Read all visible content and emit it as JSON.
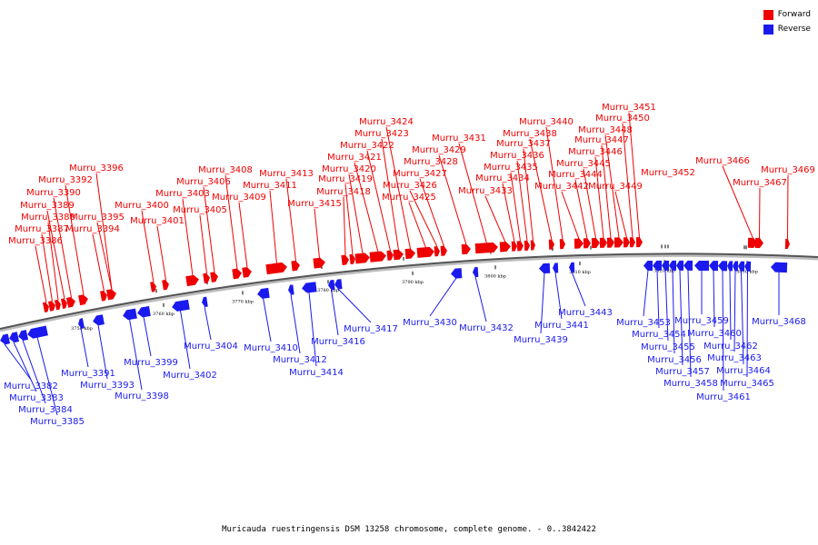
{
  "legend": {
    "forward_label": "Forward",
    "reverse_label": "Reverse",
    "forward_color": "#ee0000",
    "reverse_color": "#1a1aee"
  },
  "caption": "Muricauda ruestringensis DSM 13258 chromosome, complete genome. - 0..3842422",
  "ticks": [
    "3750 kbp",
    "3760 kbp",
    "3770 kbp",
    "3780 kbp",
    "3790 kbp",
    "3800 kbp",
    "3810 kbp",
    "3820 kbp",
    "3830 kbp"
  ],
  "genes": [
    {
      "name": "Murru_3382",
      "strand": "reverse"
    },
    {
      "name": "Murru_3383",
      "strand": "reverse"
    },
    {
      "name": "Murru_3384",
      "strand": "reverse"
    },
    {
      "name": "Murru_3385",
      "strand": "reverse"
    },
    {
      "name": "Murru_3386",
      "strand": "forward"
    },
    {
      "name": "Murru_3387",
      "strand": "forward"
    },
    {
      "name": "Murru_3388",
      "strand": "forward"
    },
    {
      "name": "Murru_3389",
      "strand": "forward"
    },
    {
      "name": "Murru_3390",
      "strand": "forward"
    },
    {
      "name": "Murru_3391",
      "strand": "reverse"
    },
    {
      "name": "Murru_3392",
      "strand": "forward"
    },
    {
      "name": "Murru_3393",
      "strand": "reverse"
    },
    {
      "name": "Murru_3394",
      "strand": "forward"
    },
    {
      "name": "Murru_3395",
      "strand": "forward"
    },
    {
      "name": "Murru_3396",
      "strand": "forward"
    },
    {
      "name": "Murru_3398",
      "strand": "reverse"
    },
    {
      "name": "Murru_3399",
      "strand": "reverse"
    },
    {
      "name": "Murru_3400",
      "strand": "forward"
    },
    {
      "name": "Murru_3401",
      "strand": "forward"
    },
    {
      "name": "Murru_3402",
      "strand": "reverse"
    },
    {
      "name": "Murru_3403",
      "strand": "forward"
    },
    {
      "name": "Murru_3404",
      "strand": "reverse"
    },
    {
      "name": "Murru_3405",
      "strand": "forward"
    },
    {
      "name": "Murru_3406",
      "strand": "forward"
    },
    {
      "name": "Murru_3408",
      "strand": "forward"
    },
    {
      "name": "Murru_3409",
      "strand": "forward"
    },
    {
      "name": "Murru_3410",
      "strand": "reverse"
    },
    {
      "name": "Murru_3411",
      "strand": "forward"
    },
    {
      "name": "Murru_3412",
      "strand": "reverse"
    },
    {
      "name": "Murru_3413",
      "strand": "forward"
    },
    {
      "name": "Murru_3414",
      "strand": "reverse"
    },
    {
      "name": "Murru_3415",
      "strand": "forward"
    },
    {
      "name": "Murru_3416",
      "strand": "reverse"
    },
    {
      "name": "Murru_3417",
      "strand": "reverse"
    },
    {
      "name": "Murru_3418",
      "strand": "forward"
    },
    {
      "name": "Murru_3419",
      "strand": "forward"
    },
    {
      "name": "Murru_3420",
      "strand": "forward"
    },
    {
      "name": "Murru_3421",
      "strand": "forward"
    },
    {
      "name": "Murru_3422",
      "strand": "forward"
    },
    {
      "name": "Murru_3423",
      "strand": "forward"
    },
    {
      "name": "Murru_3424",
      "strand": "forward"
    },
    {
      "name": "Murru_3425",
      "strand": "forward"
    },
    {
      "name": "Murru_3426",
      "strand": "forward"
    },
    {
      "name": "Murru_3427",
      "strand": "forward"
    },
    {
      "name": "Murru_3428",
      "strand": "forward"
    },
    {
      "name": "Murru_3429",
      "strand": "forward"
    },
    {
      "name": "Murru_3430",
      "strand": "reverse"
    },
    {
      "name": "Murru_3431",
      "strand": "forward"
    },
    {
      "name": "Murru_3432",
      "strand": "reverse"
    },
    {
      "name": "Murru_3433",
      "strand": "forward"
    },
    {
      "name": "Murru_3434",
      "strand": "forward"
    },
    {
      "name": "Murru_3435",
      "strand": "forward"
    },
    {
      "name": "Murru_3436",
      "strand": "forward"
    },
    {
      "name": "Murru_3437",
      "strand": "forward"
    },
    {
      "name": "Murru_3438",
      "strand": "forward"
    },
    {
      "name": "Murru_3439",
      "strand": "reverse"
    },
    {
      "name": "Murru_3440",
      "strand": "forward"
    },
    {
      "name": "Murru_3441",
      "strand": "reverse"
    },
    {
      "name": "Murru_3442",
      "strand": "forward"
    },
    {
      "name": "Murru_3443",
      "strand": "reverse"
    },
    {
      "name": "Murru_3444",
      "strand": "forward"
    },
    {
      "name": "Murru_3445",
      "strand": "forward"
    },
    {
      "name": "Murru_3446",
      "strand": "forward"
    },
    {
      "name": "Murru_3447",
      "strand": "forward"
    },
    {
      "name": "Murru_3448",
      "strand": "forward"
    },
    {
      "name": "Murru_3449",
      "strand": "forward"
    },
    {
      "name": "Murru_3450",
      "strand": "forward"
    },
    {
      "name": "Murru_3451",
      "strand": "forward"
    },
    {
      "name": "Murru_3452",
      "strand": "forward"
    },
    {
      "name": "Murru_3453",
      "strand": "reverse"
    },
    {
      "name": "Murru_3454",
      "strand": "reverse"
    },
    {
      "name": "Murru_3455",
      "strand": "reverse"
    },
    {
      "name": "Murru_3456",
      "strand": "reverse"
    },
    {
      "name": "Murru_3457",
      "strand": "reverse"
    },
    {
      "name": "Murru_3458",
      "strand": "reverse"
    },
    {
      "name": "Murru_3459",
      "strand": "reverse"
    },
    {
      "name": "Murru_3460",
      "strand": "reverse"
    },
    {
      "name": "Murru_3461",
      "strand": "reverse"
    },
    {
      "name": "Murru_3462",
      "strand": "reverse"
    },
    {
      "name": "Murru_3463",
      "strand": "reverse"
    },
    {
      "name": "Murru_3464",
      "strand": "reverse"
    },
    {
      "name": "Murru_3465",
      "strand": "reverse"
    },
    {
      "name": "Murru_3466",
      "strand": "forward"
    },
    {
      "name": "Murru_3467",
      "strand": "forward"
    },
    {
      "name": "Murru_3468",
      "strand": "reverse"
    },
    {
      "name": "Murru_3469",
      "strand": "forward"
    }
  ]
}
